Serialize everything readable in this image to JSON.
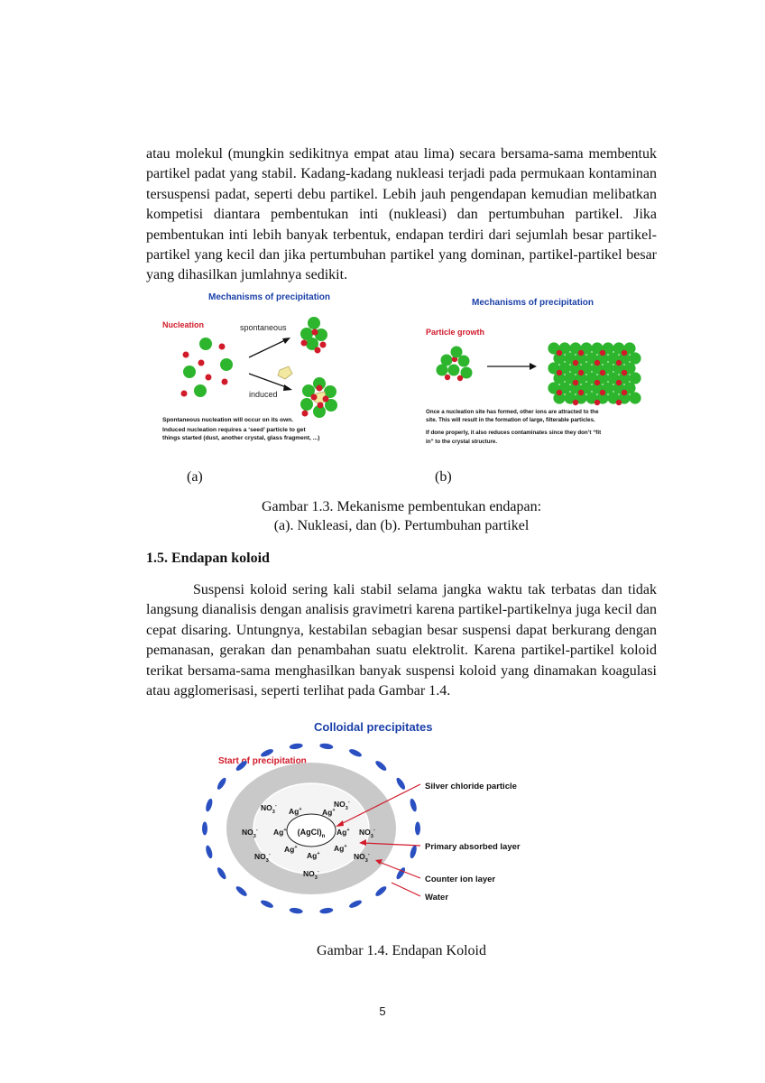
{
  "para1": "atau molekul (mungkin sedikitnya empat atau lima) secara bersama-sama membentuk partikel padat yang stabil. Kadang-kadang nukleasi terjadi pada permukaan kontaminan tersuspensi padat, seperti debu partikel. Lebih jauh pengendapan kemudian melibatkan kompetisi diantara pembentukan inti (nukleasi) dan pertumbuhan partikel. Jika pembentukan inti lebih banyak terbentuk, endapan terdiri dari sejumlah besar partikel-partikel yang kecil dan jika pertumbuhan partikel yang dominan, partikel-partikel besar yang dihasilkan jumlahnya sedikit.",
  "fig13": {
    "a": {
      "title": "Mechanisms of precipitation",
      "label": "Nucleation",
      "spontaneous": "spontaneous",
      "induced": "induced",
      "note1": "Spontaneous nucleation will occur on its own.",
      "note2a": "Induced nucleation requires a ‘seed’ particle to get",
      "note2b": "things started (dust, another crystal, glass fragment, ...)"
    },
    "b": {
      "title": "Mechanisms of precipitation",
      "label": "Particle growth",
      "note1a": "Once a nucleation site has formed, other ions are attracted to the",
      "note1b": "site.  This will result in the formation of large, filterable particles.",
      "note2a": "If done properly, it also reduces contaminates since they don’t “fit",
      "note2b": "in” to the crystal structure."
    },
    "sublabel_a": "(a)",
    "sublabel_b": "(b)",
    "caption_line1": "Gambar 1.3. Mekanisme pembentukan endapan:",
    "caption_line2": "(a). Nukleasi, dan (b). Pertumbuhan partikel"
  },
  "section_heading": "1.5. Endapan koloid",
  "para2": "Suspensi koloid sering kali stabil selama jangka waktu tak terbatas dan tidak langsung dianalisis dengan analisis gravimetri karena partikel-partikelnya juga kecil dan cepat disaring. Untungnya, kestabilan sebagian besar suspensi dapat berkurang dengan pemanasan, gerakan dan penambahan suatu elektrolit. Karena partikel-partikel koloid terikat bersama-sama menghasilkan banyak suspensi koloid yang dinamakan koagulasi atau agglomerisasi, seperti terlihat pada Gambar 1.4.",
  "fig14": {
    "title": "Colloidal precipitates",
    "start": "Start of precipitation",
    "center": "(AgCl)",
    "center_sub": "n",
    "ag": "Ag",
    "ag_sup": "+",
    "no": "NO",
    "no_sub": "3",
    "no_sup": "-",
    "label_silver": "Silver chloride particle",
    "label_primary": "Primary absorbed layer",
    "label_counter": "Counter ion layer",
    "label_water": "Water",
    "caption": "Gambar 1.4. Endapan Koloid"
  },
  "page_number": "5",
  "colors": {
    "green": "#2db52d",
    "red": "#d11a2a",
    "title_blue": "#1a3fa8",
    "label_red": "#d11a2a",
    "water_blue": "#2a4fc0",
    "gray": "#c9c9c9"
  }
}
